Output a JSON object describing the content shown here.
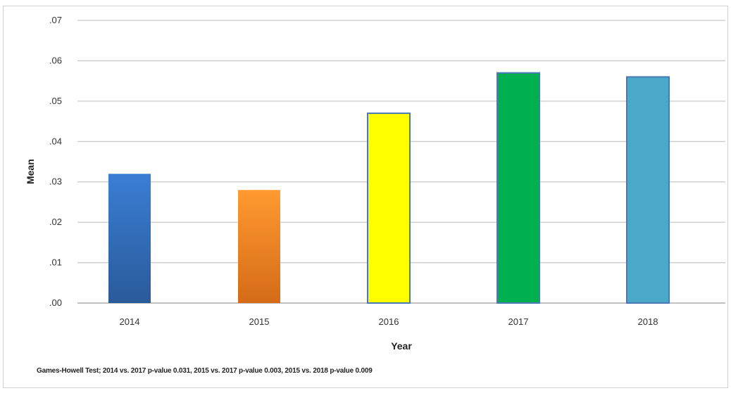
{
  "chart_data": {
    "type": "bar",
    "categories": [
      "2014",
      "2015",
      "2016",
      "2017",
      "2018"
    ],
    "values": [
      0.032,
      0.028,
      0.047,
      0.057,
      0.056
    ],
    "colors": [
      "#2f67b3",
      "#f0882a",
      "#ffff00",
      "#00b050",
      "#4aa8c8"
    ],
    "bar_edge_color": "#4a7ab5",
    "xlabel": "Year",
    "ylabel": "Mean",
    "ylim": [
      0,
      0.07
    ],
    "yticks": [
      ".00",
      ".01",
      ".02",
      ".03",
      ".04",
      ".05",
      ".06",
      ".07"
    ],
    "grid": true,
    "note": "Games-Howell Test; 2014 vs. 2017 p-value 0.031, 2015 vs. 2017 p-value 0.003, 2015 vs. 2018 p-value 0.009"
  }
}
